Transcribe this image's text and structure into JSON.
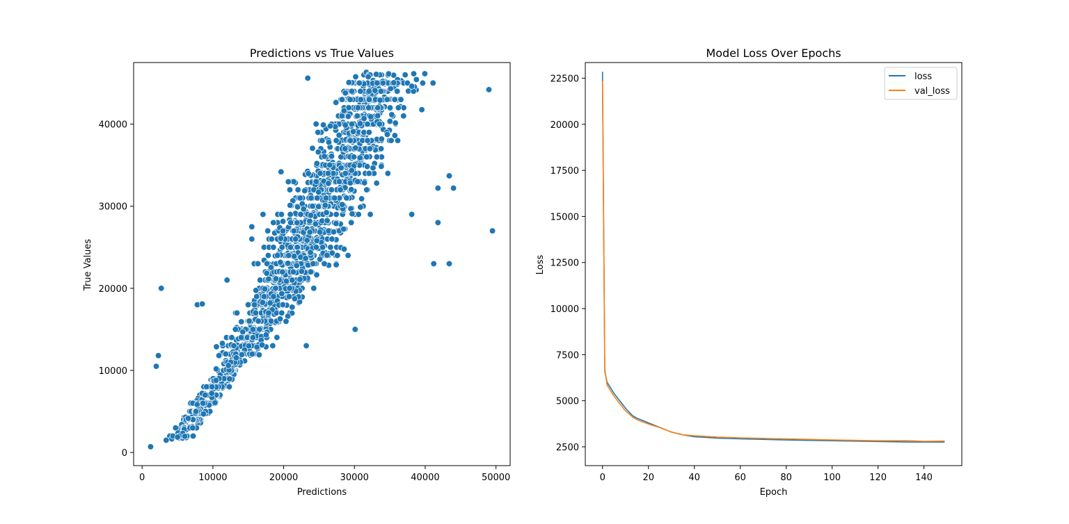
{
  "chart_data": [
    {
      "type": "scatter",
      "title": "Predictions vs True Values",
      "xlabel": "Predictions",
      "ylabel": "True Values",
      "xlim": [
        -1200,
        52000
      ],
      "ylim": [
        -1600,
        47500
      ],
      "xticks": [
        0,
        10000,
        20000,
        30000,
        40000,
        50000
      ],
      "yticks": [
        0,
        10000,
        20000,
        30000,
        40000
      ],
      "grid": false,
      "marker_color": "#1f77b4",
      "points_note": "approx. point cloud (several thousand points) rising along the diagonal",
      "outliers": [
        [
          2700,
          20000
        ],
        [
          2300,
          11800
        ],
        [
          2000,
          10500
        ],
        [
          7800,
          18000
        ],
        [
          8500,
          18100
        ],
        [
          23400,
          45600
        ],
        [
          49000,
          44200
        ],
        [
          49500,
          27000
        ],
        [
          30100,
          15000
        ],
        [
          41200,
          23000
        ],
        [
          43400,
          23000
        ],
        [
          41800,
          28000
        ],
        [
          38100,
          29000
        ],
        [
          41800,
          32200
        ],
        [
          44000,
          32200
        ],
        [
          43400,
          33700
        ],
        [
          23200,
          13000
        ],
        [
          1200,
          700
        ],
        [
          3400,
          1500
        ],
        [
          12000,
          21000
        ],
        [
          15500,
          27500
        ]
      ]
    },
    {
      "type": "line",
      "title": "Model Loss Over Epochs",
      "xlabel": "Epoch",
      "ylabel": "Loss",
      "xlim": [
        -7.5,
        156.5
      ],
      "ylim": [
        1480,
        23350
      ],
      "xticks": [
        0,
        20,
        40,
        60,
        80,
        100,
        120,
        140
      ],
      "yticks": [
        2500,
        5000,
        7500,
        10000,
        12500,
        15000,
        17500,
        20000,
        22500
      ],
      "grid": false,
      "legend": "top-right",
      "x": [
        0,
        1,
        2,
        5,
        10,
        13,
        15,
        20,
        25,
        30,
        35,
        40,
        50,
        60,
        80,
        100,
        120,
        133,
        140,
        149
      ],
      "series": [
        {
          "name": "loss",
          "color": "#1f77b4",
          "values": [
            22850,
            6600,
            6000,
            5400,
            4600,
            4200,
            4050,
            3800,
            3550,
            3300,
            3150,
            3050,
            2970,
            2930,
            2870,
            2830,
            2790,
            2760,
            2760,
            2760
          ]
        },
        {
          "name": "val_loss",
          "color": "#ff7f0e",
          "values": [
            22350,
            6700,
            5850,
            5250,
            4450,
            4130,
            3970,
            3740,
            3540,
            3300,
            3150,
            3100,
            3030,
            2990,
            2930,
            2870,
            2830,
            2830,
            2800,
            2810
          ]
        }
      ]
    }
  ]
}
